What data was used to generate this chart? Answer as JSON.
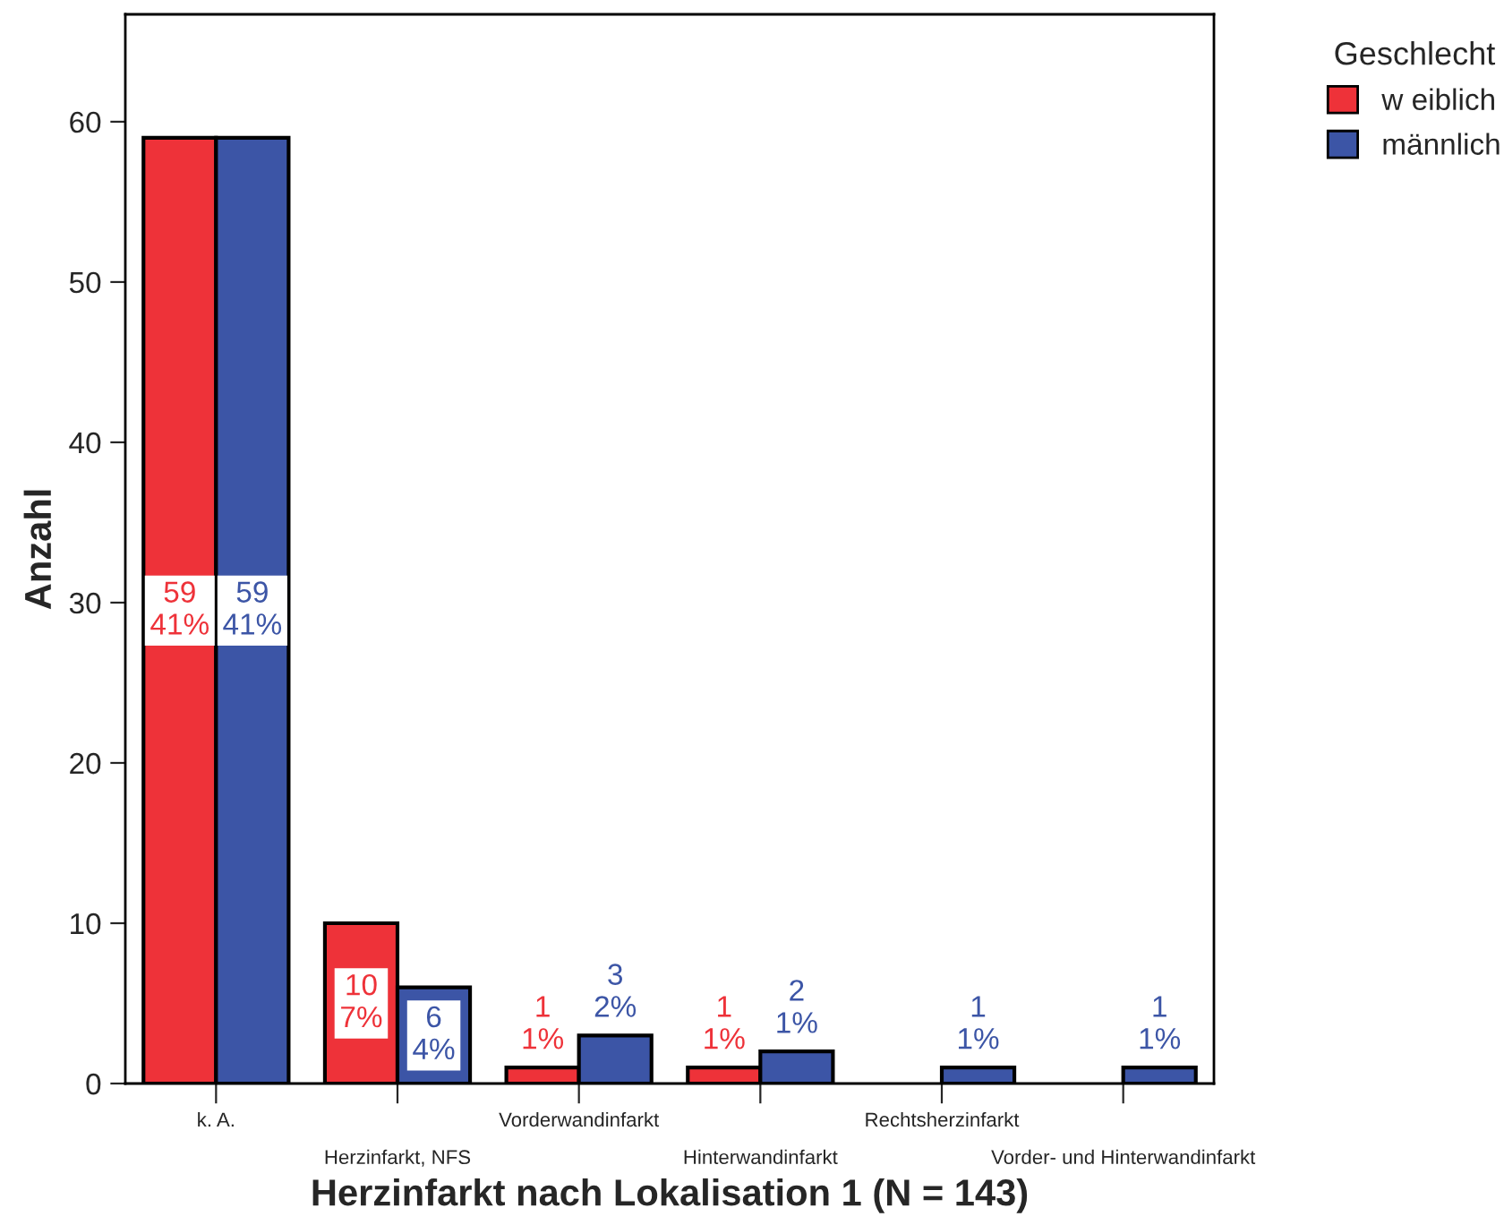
{
  "chart_data": {
    "type": "bar",
    "xlabel": "Herzinfarkt nach Lokalisation 1 (N = 143)",
    "ylabel": "Anzahl",
    "legend_title": "Geschlecht",
    "categories": [
      "k. A.",
      "Herzinfarkt, NFS",
      "Vorderwandinfarkt",
      "Hinterwandinfarkt",
      "Rechtsherzinfarkt",
      "Vorder- und Hinterwandinfarkt"
    ],
    "series": [
      {
        "name": "w eiblich",
        "color": "#ee3239",
        "values": [
          59,
          10,
          1,
          1,
          null,
          null
        ],
        "value_labels": [
          "59\n41%",
          "10\n7%",
          "1\n1%",
          "1\n1%",
          null,
          null
        ]
      },
      {
        "name": "männlich",
        "color": "#3c55a6",
        "values": [
          59,
          6,
          3,
          2,
          1,
          1
        ],
        "value_labels": [
          "59\n41%",
          "6\n4%",
          "3\n2%",
          "2\n1%",
          "1\n1%",
          "1\n1%"
        ]
      }
    ],
    "ylim": [
      0,
      66.7
    ],
    "yticks": [
      0,
      10,
      20,
      30,
      40,
      50,
      60
    ],
    "grid": false,
    "legend": "top right"
  }
}
